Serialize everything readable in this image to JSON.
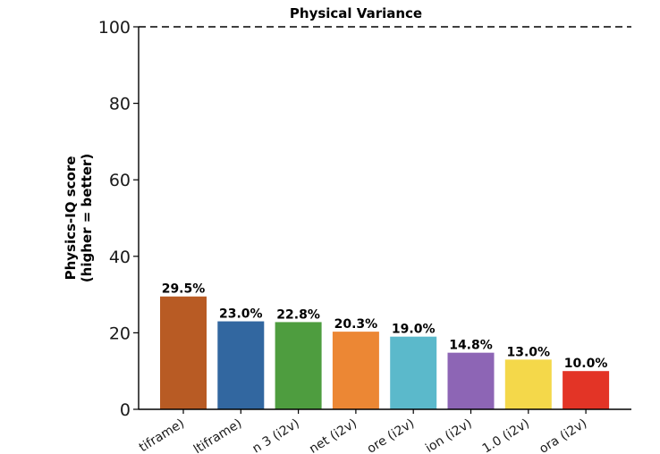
{
  "chart_data": {
    "type": "bar",
    "title": "Physical Variance",
    "ylabel_line1": "Physics-IQ score",
    "ylabel_line2": "(higher = better)",
    "xlabel": "",
    "ylim": [
      0,
      100
    ],
    "yticks": [
      "0",
      "20",
      "40",
      "60",
      "80",
      "100"
    ],
    "reference_line": {
      "value": 100,
      "style": "dashed"
    },
    "categories": [
      "tiframe)",
      "ltiframe)",
      "n 3 (i2v)",
      "net (i2v)",
      "ore (i2v)",
      "ion (i2v)",
      "1.0 (i2v)",
      "ora (i2v)"
    ],
    "values": [
      29.5,
      23.0,
      22.8,
      20.3,
      19.0,
      14.8,
      13.0,
      10.0
    ],
    "value_labels": [
      "29.5%",
      "23.0%",
      "22.8%",
      "20.3%",
      "19.0%",
      "14.8%",
      "13.0%",
      "10.0%"
    ],
    "colors": [
      "#b85b24",
      "#3267a0",
      "#4e9d3f",
      "#ec8734",
      "#5bb9cb",
      "#8d65b5",
      "#f4d84a",
      "#e33426"
    ],
    "grid": false
  }
}
